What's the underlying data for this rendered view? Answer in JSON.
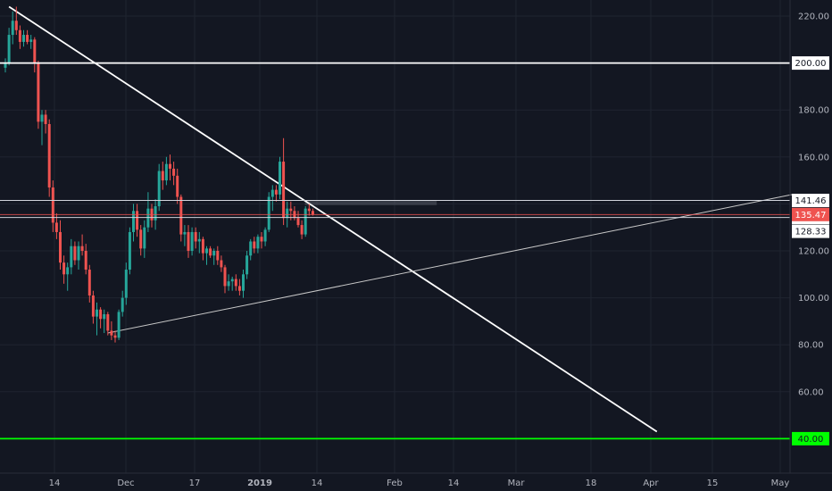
{
  "colors": {
    "background": "#131722",
    "grid": "#1f2430",
    "axis_text": "#b2b5be",
    "up": "#26a69a",
    "down": "#ef5350",
    "level_line": "#ffffff",
    "support_line": "#00ff00",
    "current_price": "#ef5350",
    "label_bg": "#ffffff",
    "label_text": "#131722"
  },
  "chart_data": {
    "type": "candlestick",
    "ylim": [
      32,
      228
    ],
    "y_ticks": [
      "60.00",
      "80.00",
      "100.00",
      "120.00",
      "140.00",
      "160.00",
      "180.00",
      "200.00",
      "220.00"
    ],
    "x_ticks": [
      "14",
      "Dec",
      "17",
      "2019",
      "14",
      "Feb",
      "14",
      "Mar",
      "18",
      "Apr",
      "15",
      "May"
    ],
    "candles": [
      {
        "o": 198,
        "h": 202,
        "l": 196,
        "c": 200
      },
      {
        "o": 200,
        "h": 215,
        "l": 199,
        "c": 212
      },
      {
        "o": 212,
        "h": 222,
        "l": 208,
        "c": 218
      },
      {
        "o": 218,
        "h": 224,
        "l": 212,
        "c": 214
      },
      {
        "o": 214,
        "h": 216,
        "l": 206,
        "c": 209
      },
      {
        "o": 209,
        "h": 214,
        "l": 207,
        "c": 212
      },
      {
        "o": 212,
        "h": 214,
        "l": 208,
        "c": 209
      },
      {
        "o": 209,
        "h": 212,
        "l": 206,
        "c": 210
      },
      {
        "o": 210,
        "h": 211,
        "l": 196,
        "c": 200
      },
      {
        "o": 200,
        "h": 201,
        "l": 172,
        "c": 175
      },
      {
        "o": 175,
        "h": 180,
        "l": 165,
        "c": 178
      },
      {
        "o": 178,
        "h": 180,
        "l": 170,
        "c": 174
      },
      {
        "o": 174,
        "h": 176,
        "l": 143,
        "c": 147
      },
      {
        "o": 147,
        "h": 150,
        "l": 128,
        "c": 132
      },
      {
        "o": 132,
        "h": 136,
        "l": 125,
        "c": 128
      },
      {
        "o": 128,
        "h": 133,
        "l": 112,
        "c": 115
      },
      {
        "o": 115,
        "h": 118,
        "l": 106,
        "c": 110
      },
      {
        "o": 110,
        "h": 115,
        "l": 103,
        "c": 113
      },
      {
        "o": 113,
        "h": 125,
        "l": 110,
        "c": 122
      },
      {
        "o": 122,
        "h": 124,
        "l": 114,
        "c": 116
      },
      {
        "o": 116,
        "h": 124,
        "l": 112,
        "c": 122
      },
      {
        "o": 122,
        "h": 127,
        "l": 118,
        "c": 120
      },
      {
        "o": 120,
        "h": 123,
        "l": 110,
        "c": 112
      },
      {
        "o": 112,
        "h": 114,
        "l": 98,
        "c": 101
      },
      {
        "o": 101,
        "h": 103,
        "l": 89,
        "c": 92
      },
      {
        "o": 92,
        "h": 98,
        "l": 84,
        "c": 95
      },
      {
        "o": 95,
        "h": 96,
        "l": 87,
        "c": 91
      },
      {
        "o": 91,
        "h": 95,
        "l": 85,
        "c": 93
      },
      {
        "o": 93,
        "h": 94,
        "l": 84,
        "c": 86
      },
      {
        "o": 86,
        "h": 90,
        "l": 82,
        "c": 84
      },
      {
        "o": 84,
        "h": 86,
        "l": 81,
        "c": 83
      },
      {
        "o": 83,
        "h": 95,
        "l": 82,
        "c": 94
      },
      {
        "o": 94,
        "h": 103,
        "l": 92,
        "c": 100
      },
      {
        "o": 100,
        "h": 115,
        "l": 97,
        "c": 112
      },
      {
        "o": 112,
        "h": 130,
        "l": 110,
        "c": 128
      },
      {
        "o": 128,
        "h": 140,
        "l": 124,
        "c": 137
      },
      {
        "o": 137,
        "h": 140,
        "l": 126,
        "c": 129
      },
      {
        "o": 129,
        "h": 131,
        "l": 118,
        "c": 121
      },
      {
        "o": 121,
        "h": 133,
        "l": 117,
        "c": 130
      },
      {
        "o": 130,
        "h": 145,
        "l": 128,
        "c": 138
      },
      {
        "o": 138,
        "h": 140,
        "l": 130,
        "c": 133
      },
      {
        "o": 133,
        "h": 142,
        "l": 129,
        "c": 139
      },
      {
        "o": 139,
        "h": 157,
        "l": 137,
        "c": 154
      },
      {
        "o": 154,
        "h": 158,
        "l": 146,
        "c": 150
      },
      {
        "o": 150,
        "h": 160,
        "l": 148,
        "c": 157
      },
      {
        "o": 157,
        "h": 161,
        "l": 150,
        "c": 155
      },
      {
        "o": 155,
        "h": 158,
        "l": 148,
        "c": 152
      },
      {
        "o": 152,
        "h": 155,
        "l": 140,
        "c": 143
      },
      {
        "o": 143,
        "h": 144,
        "l": 124,
        "c": 127
      },
      {
        "o": 127,
        "h": 131,
        "l": 122,
        "c": 128
      },
      {
        "o": 128,
        "h": 131,
        "l": 117,
        "c": 120
      },
      {
        "o": 120,
        "h": 130,
        "l": 118,
        "c": 128
      },
      {
        "o": 128,
        "h": 130,
        "l": 121,
        "c": 124
      },
      {
        "o": 124,
        "h": 128,
        "l": 119,
        "c": 125
      },
      {
        "o": 125,
        "h": 126,
        "l": 116,
        "c": 119
      },
      {
        "o": 119,
        "h": 122,
        "l": 114,
        "c": 121
      },
      {
        "o": 121,
        "h": 122,
        "l": 117,
        "c": 118
      },
      {
        "o": 118,
        "h": 121,
        "l": 114,
        "c": 120
      },
      {
        "o": 120,
        "h": 122,
        "l": 114,
        "c": 116
      },
      {
        "o": 116,
        "h": 118,
        "l": 111,
        "c": 113
      },
      {
        "o": 113,
        "h": 114,
        "l": 102,
        "c": 105
      },
      {
        "o": 105,
        "h": 110,
        "l": 103,
        "c": 107
      },
      {
        "o": 107,
        "h": 109,
        "l": 103,
        "c": 108
      },
      {
        "o": 108,
        "h": 110,
        "l": 103,
        "c": 105
      },
      {
        "o": 105,
        "h": 108,
        "l": 101,
        "c": 103
      },
      {
        "o": 103,
        "h": 112,
        "l": 100,
        "c": 110
      },
      {
        "o": 110,
        "h": 120,
        "l": 108,
        "c": 118
      },
      {
        "o": 118,
        "h": 125,
        "l": 116,
        "c": 124
      },
      {
        "o": 124,
        "h": 126,
        "l": 119,
        "c": 121
      },
      {
        "o": 121,
        "h": 127,
        "l": 119,
        "c": 126
      },
      {
        "o": 126,
        "h": 128,
        "l": 121,
        "c": 124
      },
      {
        "o": 124,
        "h": 130,
        "l": 122,
        "c": 129
      },
      {
        "o": 129,
        "h": 145,
        "l": 128,
        "c": 143
      },
      {
        "o": 143,
        "h": 148,
        "l": 137,
        "c": 146
      },
      {
        "o": 146,
        "h": 148,
        "l": 141,
        "c": 144
      },
      {
        "o": 144,
        "h": 160,
        "l": 142,
        "c": 158
      },
      {
        "o": 158,
        "h": 168,
        "l": 131,
        "c": 134
      },
      {
        "o": 134,
        "h": 141,
        "l": 130,
        "c": 138
      },
      {
        "o": 138,
        "h": 141,
        "l": 133,
        "c": 137
      },
      {
        "o": 137,
        "h": 139,
        "l": 133,
        "c": 134
      },
      {
        "o": 134,
        "h": 137,
        "l": 130,
        "c": 131
      },
      {
        "o": 131,
        "h": 133,
        "l": 125,
        "c": 127
      },
      {
        "o": 127,
        "h": 139,
        "l": 126,
        "c": 138
      },
      {
        "o": 138,
        "h": 140,
        "l": 135,
        "c": 137
      },
      {
        "o": 137,
        "h": 138,
        "l": 135,
        "c": 135.47
      }
    ],
    "levels": [
      {
        "value": 200,
        "label": "200.00",
        "kind": "resistance"
      },
      {
        "value": 141.46,
        "label": "141.46",
        "kind": "resistance"
      },
      {
        "value": 134.22,
        "label": "134.22",
        "kind": "support"
      },
      {
        "value": 40,
        "label": "40.00",
        "kind": "target"
      }
    ],
    "current_price": {
      "value": 135.47,
      "label": "135.47"
    },
    "other_price_label": {
      "value": 128.33,
      "label": "128.33"
    },
    "trendlines": [
      {
        "name": "downtrend",
        "from": {
          "bar": 1,
          "price": 224
        },
        "to": {
          "bar": 178,
          "price": 43
        }
      },
      {
        "name": "uptrend",
        "from": {
          "bar": 28,
          "price": 85
        },
        "to": {
          "bar": 215,
          "price": 144
        }
      }
    ],
    "resistance_zone": {
      "from_bar": 76,
      "to_bar": 112,
      "low": 139.5,
      "high": 141.5
    }
  }
}
